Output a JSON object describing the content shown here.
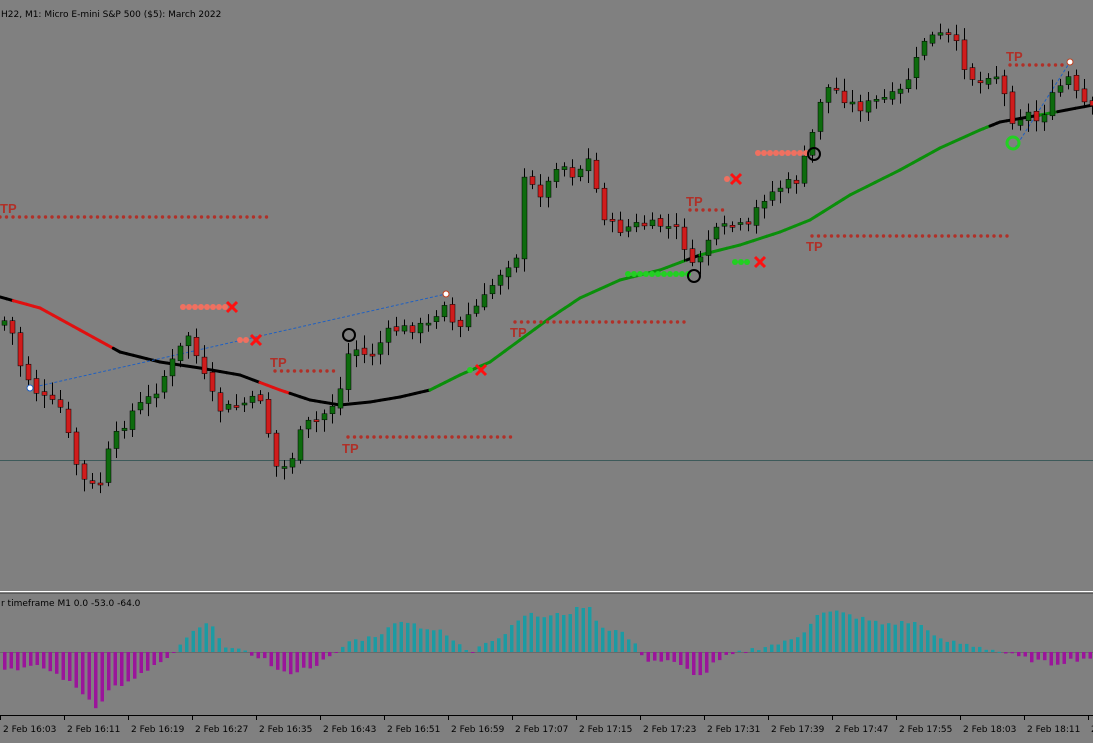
{
  "window": {
    "title": "H22, M1:  Micro E-mini S&P 500 ($5): March 2022",
    "indicator_label": "r timeframe M1 0.0 -53.0 -64.0"
  },
  "colors": {
    "background": "#808080",
    "bull_candle": "#0d6b0d",
    "bear_candle": "#d01c1c",
    "ma_up": "#0a8f0a",
    "ma_down": "#e01010",
    "ma_flat": "#000000",
    "hist_pos": "#1b9ba3",
    "hist_neg": "#9b149b",
    "tp_dots": "#b03028",
    "entry_sell": "#f07060",
    "entry_buy": "#22d022",
    "stop_x": "#ff1010"
  },
  "chart_data": {
    "type": "candlestick",
    "instrument": "Micro E-mini S&P 500 ($5): March 2022",
    "timeframe": "M1",
    "x_tick_labels": [
      "2 Feb 16:03",
      "2 Feb 16:11",
      "2 Feb 16:19",
      "2 Feb 16:27",
      "2 Feb 16:35",
      "2 Feb 16:43",
      "2 Feb 16:51",
      "2 Feb 16:59",
      "2 Feb 17:07",
      "2 Feb 17:15",
      "2 Feb 17:23",
      "2 Feb 17:31",
      "2 Feb 17:39",
      "2 Feb 17:47",
      "2 Feb 17:55",
      "2 Feb 18:03",
      "2 Feb 18:11",
      "2"
    ],
    "tp_labels": [
      "TP",
      "TP",
      "TP",
      "TP",
      "TP",
      "TP",
      "TP"
    ],
    "subwindow": {
      "label": "r timeframe M1 0.0 -53.0 -64.0",
      "type": "histogram"
    }
  }
}
